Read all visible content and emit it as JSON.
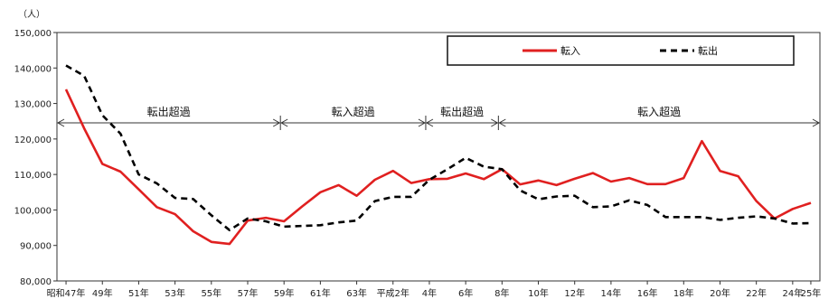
{
  "chart_data": {
    "type": "line",
    "unit_label": "（人）",
    "y_ticks": [
      "80,000",
      "90,000",
      "100,000",
      "110,000",
      "120,000",
      "130,000",
      "140,000",
      "150,000"
    ],
    "ylim": [
      80000,
      150000
    ],
    "x_tick_labels": [
      "昭和47年",
      "49年",
      "51年",
      "53年",
      "55年",
      "57年",
      "59年",
      "61年",
      "63年",
      "平成2年",
      "4年",
      "6年",
      "8年",
      "10年",
      "12年",
      "14年",
      "16年",
      "18年",
      "20年",
      "22年",
      "24年",
      "25年"
    ],
    "categories": [
      "昭和47年",
      "48年",
      "49年",
      "50年",
      "51年",
      "52年",
      "53年",
      "54年",
      "55年",
      "56年",
      "57年",
      "58年",
      "59年",
      "60年",
      "61年",
      "62年",
      "63年",
      "平成元年",
      "平成2年",
      "3年",
      "4年",
      "5年",
      "6年",
      "7年",
      "8年",
      "9年",
      "10年",
      "11年",
      "12年",
      "13年",
      "14年",
      "15年",
      "16年",
      "17年",
      "18年",
      "19年",
      "20年",
      "21年",
      "22年",
      "23年",
      "24年",
      "25年"
    ],
    "series": [
      {
        "name": "転入",
        "color": "#e02020",
        "style": "solid",
        "values": [
          134000,
          123000,
          113000,
          110800,
          105800,
          100800,
          98800,
          94000,
          91000,
          90400,
          97000,
          97800,
          96800,
          101000,
          105000,
          107000,
          104000,
          108500,
          111000,
          107600,
          108700,
          108800,
          110300,
          108700,
          111500,
          107200,
          108300,
          107000,
          108800,
          110400,
          108000,
          109000,
          107300,
          107300,
          109000,
          119400,
          111000,
          109500,
          102500,
          97600,
          100300,
          102000
        ]
      },
      {
        "name": "転出",
        "color": "#000000",
        "style": "dashed",
        "values": [
          140700,
          137800,
          126700,
          121500,
          110000,
          107500,
          103400,
          103100,
          98500,
          94300,
          97600,
          96800,
          95300,
          95500,
          95700,
          96500,
          97000,
          102500,
          103700,
          103700,
          108500,
          111500,
          114700,
          112200,
          111500,
          105500,
          103000,
          103800,
          104000,
          100800,
          101000,
          102700,
          101400,
          98000,
          98000,
          98000,
          97200,
          97800,
          98200,
          97600,
          96200,
          96300
        ]
      }
    ],
    "periods": [
      {
        "label": "転出超過",
        "from": "昭和47年",
        "to": "59年"
      },
      {
        "label": "転入超過",
        "from": "59年",
        "to": "4年"
      },
      {
        "label": "転出超過",
        "from": "4年",
        "to": "8年"
      },
      {
        "label": "転入超過",
        "from": "8年",
        "to": "25年"
      }
    ],
    "legend": {
      "position": "top-right",
      "entries": [
        "転入",
        "転出"
      ]
    },
    "grid": false
  }
}
